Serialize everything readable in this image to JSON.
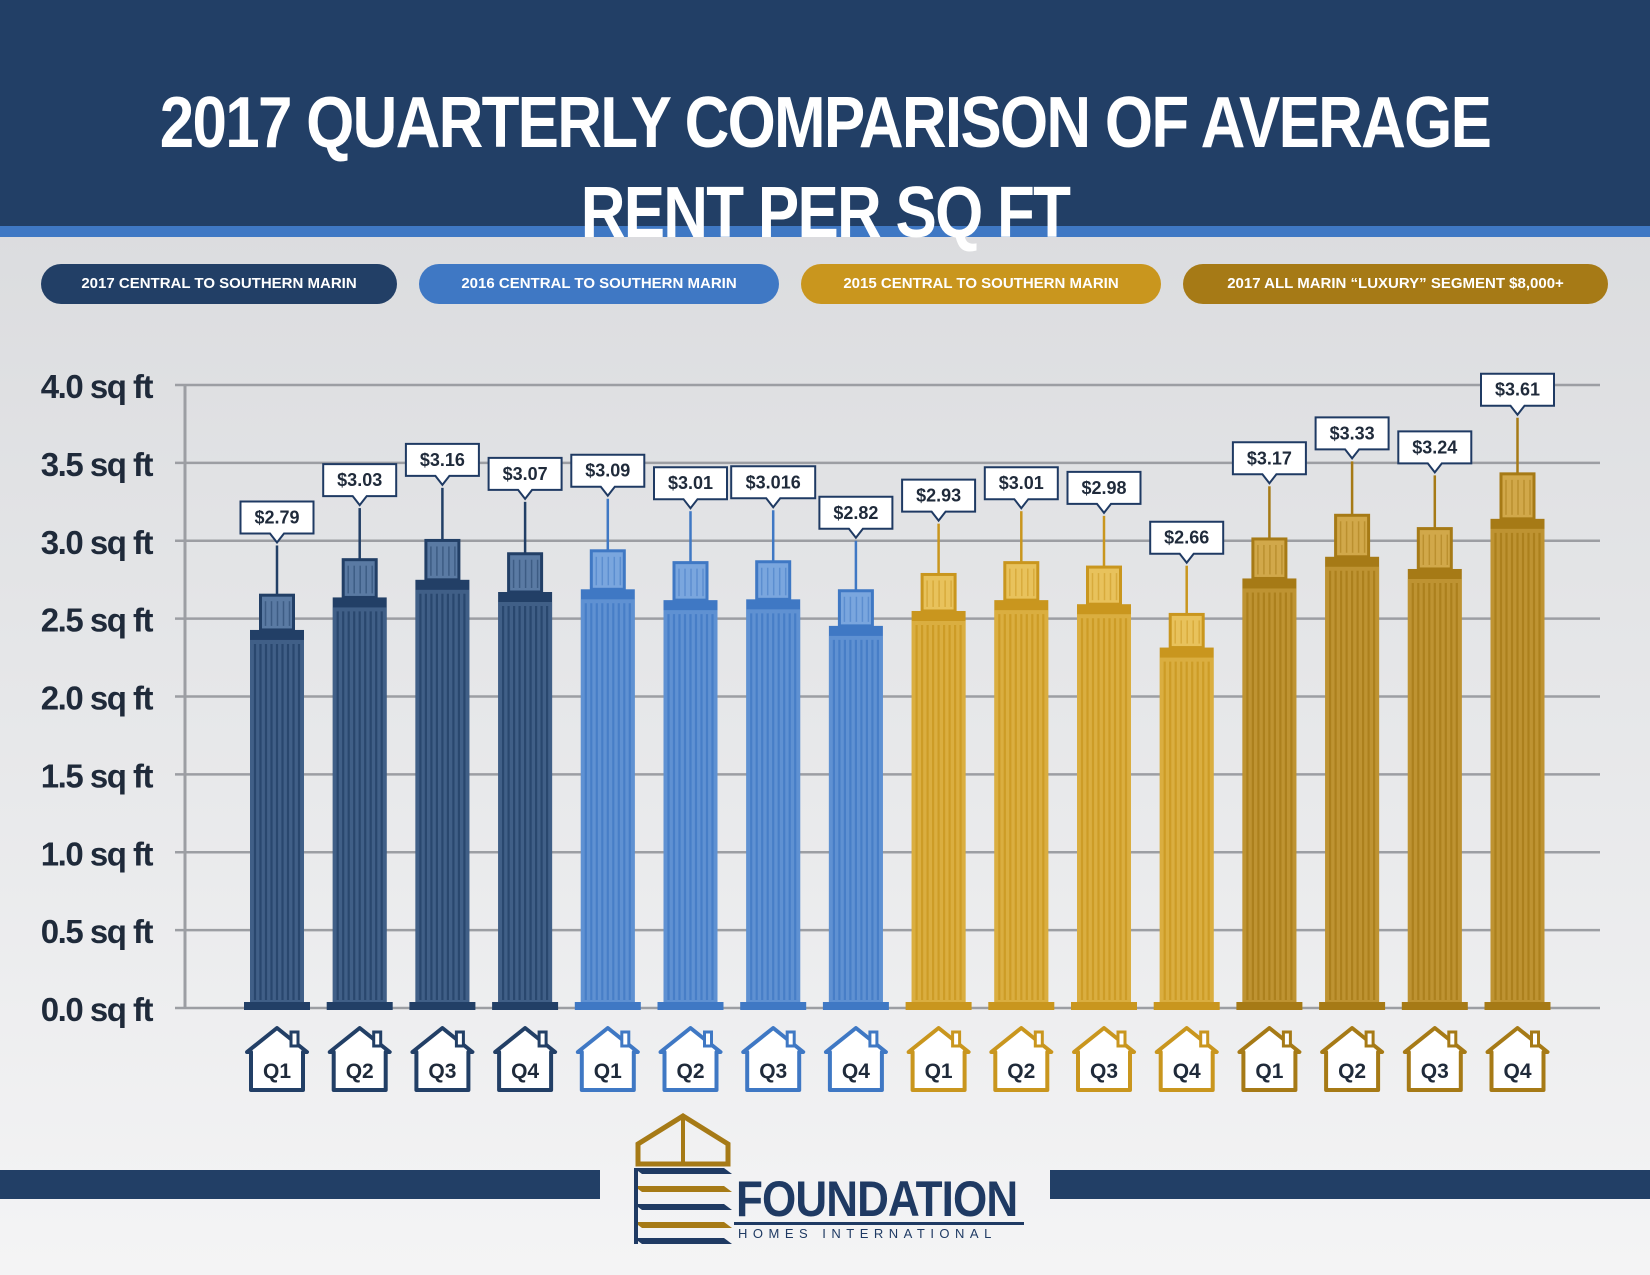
{
  "header": {
    "title": "2017 QUARTERLY COMPARISON OF AVERAGE RENT PER SQ FT"
  },
  "legend": [
    {
      "label": "2017 CENTRAL TO SOUTHERN MARIN",
      "color": "#223f66"
    },
    {
      "label": "2016 CENTRAL TO SOUTHERN MARIN",
      "color": "#3f78c4"
    },
    {
      "label": "2015 CENTRAL TO SOUTHERN MARIN",
      "color": "#c9961e"
    },
    {
      "label": "2017 ALL MARIN “LUXURY” SEGMENT $8,000+",
      "color": "#a67a16"
    }
  ],
  "chart_data": {
    "type": "bar",
    "title": "2017 QUARTERLY COMPARISON OF AVERAGE RENT PER SQ FT",
    "ylim": [
      0,
      4
    ],
    "y_ticks": [
      "0.0 sq ft",
      "0.5 sq ft",
      "1.0 sq ft",
      "1.5 sq ft",
      "2.0 sq ft",
      "2.5 sq ft",
      "3.0 sq ft",
      "3.5 sq ft",
      "4.0 sq ft"
    ],
    "y_tick_values": [
      0,
      0.5,
      1.0,
      1.5,
      2.0,
      2.5,
      3.0,
      3.5,
      4.0
    ],
    "grid": true,
    "series": [
      {
        "name": "2017 CENTRAL TO SOUTHERN MARIN",
        "color": "#223f66",
        "light": "#5a7aa3",
        "categories": [
          "Q1",
          "Q2",
          "Q3",
          "Q4"
        ],
        "values": [
          2.79,
          3.03,
          3.16,
          3.07
        ],
        "labels": [
          "$2.79",
          "$3.03",
          "$3.16",
          "$3.07"
        ]
      },
      {
        "name": "2016 CENTRAL TO SOUTHERN MARIN",
        "color": "#3f78c4",
        "light": "#7aa6de",
        "categories": [
          "Q1",
          "Q2",
          "Q3",
          "Q4"
        ],
        "values": [
          3.09,
          3.01,
          3.016,
          2.82
        ],
        "labels": [
          "$3.09",
          "$3.01",
          "$3.016",
          "$2.82"
        ]
      },
      {
        "name": "2015 CENTRAL TO SOUTHERN MARIN",
        "color": "#c9961e",
        "light": "#e8c25c",
        "categories": [
          "Q1",
          "Q2",
          "Q3",
          "Q4"
        ],
        "values": [
          2.93,
          3.01,
          2.98,
          2.66
        ],
        "labels": [
          "$2.93",
          "$3.01",
          "$2.98",
          "$2.66"
        ]
      },
      {
        "name": "2017 ALL MARIN “LUXURY” SEGMENT $8,000+",
        "color": "#a67a16",
        "light": "#d1a84a",
        "categories": [
          "Q1",
          "Q2",
          "Q3",
          "Q4"
        ],
        "values": [
          3.17,
          3.33,
          3.24,
          3.61
        ],
        "labels": [
          "$3.17",
          "$3.33",
          "$3.24",
          "$3.61"
        ]
      }
    ]
  },
  "logo": {
    "name": "FOUNDATION",
    "subtitle": "HOMES INTERNATIONAL"
  }
}
